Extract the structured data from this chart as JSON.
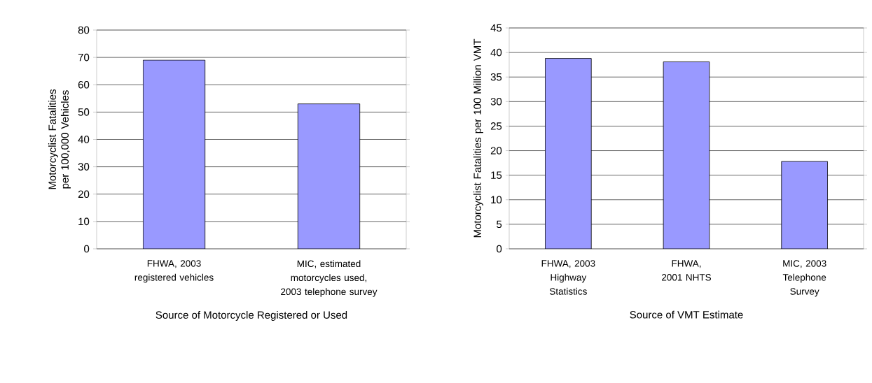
{
  "chart_data": [
    {
      "type": "bar",
      "xlabel": "Source of Motorcycle Registered or Used",
      "ylabel": "Motorcyclist Fatalities per 100,000 Vehicles",
      "categories": [
        "FHWA, 2003 registered vehicles",
        "MIC, estimated motorcycles used, 2003 telephone survey"
      ],
      "values": [
        69,
        53
      ],
      "color": "#9999ff",
      "ylim": [
        0,
        80
      ],
      "yticks": [
        0,
        10,
        20,
        30,
        40,
        50,
        60,
        70,
        80
      ],
      "grid": "y"
    },
    {
      "type": "bar",
      "xlabel": "Source of VMT Estimate",
      "ylabel": "Motorcyclist Fatalities per 100 Million VMT",
      "categories": [
        "FHWA, 2003 Highway Statistics",
        "FHWA, 2001 NHTS",
        "MIC, 2003 Telephone Survey"
      ],
      "values": [
        38.8,
        38.1,
        17.8
      ],
      "color": "#9999ff",
      "ylim": [
        0,
        45
      ],
      "yticks": [
        0,
        5,
        10,
        15,
        20,
        25,
        30,
        35,
        40,
        45
      ],
      "grid": "y"
    }
  ]
}
